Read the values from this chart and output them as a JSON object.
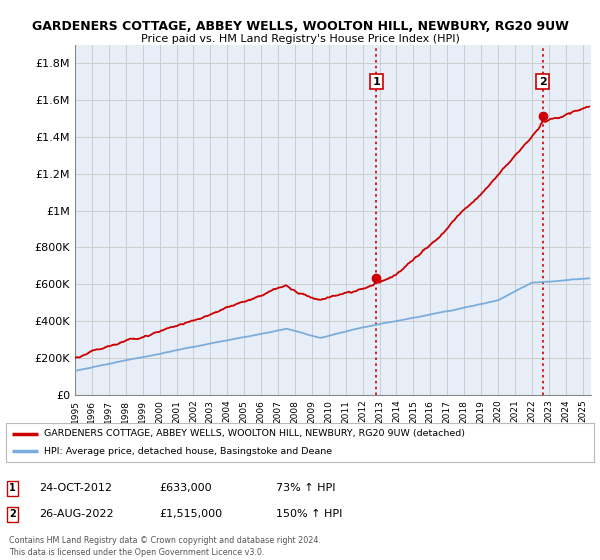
{
  "title": "GARDENERS COTTAGE, ABBEY WELLS, WOOLTON HILL, NEWBURY, RG20 9UW",
  "subtitle": "Price paid vs. HM Land Registry's House Price Index (HPI)",
  "ylabel_ticks": [
    "£0",
    "£200K",
    "£400K",
    "£600K",
    "£800K",
    "£1M",
    "£1.2M",
    "£1.4M",
    "£1.6M",
    "£1.8M"
  ],
  "ytick_values": [
    0,
    200000,
    400000,
    600000,
    800000,
    1000000,
    1200000,
    1400000,
    1600000,
    1800000
  ],
  "ylim": [
    0,
    1900000
  ],
  "xlim_start": 1995.0,
  "xlim_end": 2025.5,
  "x_ticks": [
    1995,
    1996,
    1997,
    1998,
    1999,
    2000,
    2001,
    2002,
    2003,
    2004,
    2005,
    2006,
    2007,
    2008,
    2009,
    2010,
    2011,
    2012,
    2013,
    2014,
    2015,
    2016,
    2017,
    2018,
    2019,
    2020,
    2021,
    2022,
    2023,
    2024,
    2025
  ],
  "hpi_color": "#7aaddc",
  "price_color": "#cc0000",
  "vline_color": "#cc0000",
  "grid_color": "#cccccc",
  "bg_color": "#ffffff",
  "plot_bg_color": "#e8eef8",
  "legend_label_red": "GARDENERS COTTAGE, ABBEY WELLS, WOOLTON HILL, NEWBURY, RG20 9UW (detached)",
  "legend_label_blue": "HPI: Average price, detached house, Basingstoke and Deane",
  "sale1_x": 2012.82,
  "sale1_y": 633000,
  "sale1_label": "1",
  "sale1_date": "24-OCT-2012",
  "sale1_price": "£633,000",
  "sale1_hpi": "73% ↑ HPI",
  "sale2_x": 2022.65,
  "sale2_y": 1515000,
  "sale2_label": "2",
  "sale2_date": "26-AUG-2022",
  "sale2_price": "£1,515,000",
  "sale2_hpi": "150% ↑ HPI",
  "footnote": "Contains HM Land Registry data © Crown copyright and database right 2024.\nThis data is licensed under the Open Government Licence v3.0."
}
